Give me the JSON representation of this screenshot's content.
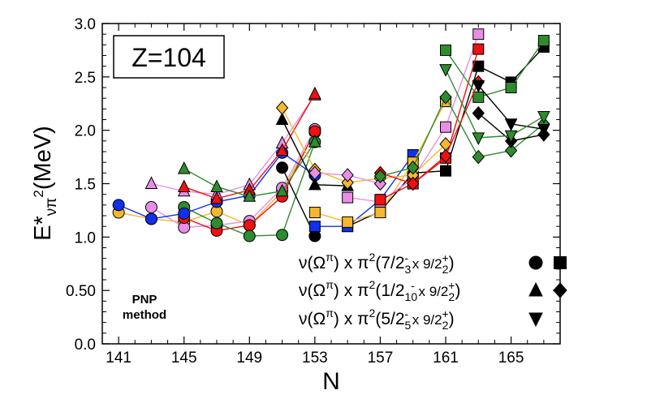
{
  "chart_data": {
    "type": "line",
    "title": "Z=104",
    "xlabel": "N",
    "ylabel": "E*",
    "ylabel_subscript": "νπ",
    "ylabel_superscript": "2",
    "ylabel_unit": "(MeV)",
    "xlim": [
      140,
      168
    ],
    "ylim": [
      0.0,
      3.0
    ],
    "xticks": [
      141,
      145,
      149,
      153,
      157,
      161,
      165
    ],
    "yticks": [
      0.0,
      0.5,
      1.0,
      1.5,
      2.0,
      2.5,
      3.0
    ],
    "ytick_labels": [
      "0.0",
      "0.50",
      "1.0",
      "1.5",
      "2.0",
      "2.5",
      "3.0"
    ],
    "method_label": [
      "PNP",
      "method"
    ],
    "legend": [
      {
        "nu": "ν(Ω",
        "pi_sup": "π",
        "close": ")",
        "x": "x",
        "pi": "π",
        "pi_sq": "2",
        "state": "(7/2",
        "state_sub": "3",
        "state_sup": "-",
        "times": " x 9/2",
        "state2_sub": "2",
        "state2_sup": "+",
        "end": ")",
        "markers": [
          "circle",
          "square"
        ]
      },
      {
        "nu": "ν(Ω",
        "pi_sup": "π",
        "close": ")",
        "x": "x",
        "pi": "π",
        "pi_sq": "2",
        "state": "(1/2",
        "state_sub": "10",
        "state_sup": "-",
        "times": " x 9/2",
        "state2_sub": "2",
        "state2_sup": "+",
        "end": ")",
        "markers": [
          "triangle",
          "diamond"
        ]
      },
      {
        "nu": "ν(Ω",
        "pi_sup": "π",
        "close": ")",
        "x": "x",
        "pi": "π",
        "pi_sq": "2",
        "state": "(5/2",
        "state_sub": "5",
        "state_sup": "-",
        "times": " x 9/2",
        "state2_sub": "2",
        "state2_sup": "+",
        "end": ")",
        "markers": [
          "triangle-down"
        ]
      }
    ],
    "series": [
      {
        "name": "orange circle",
        "color": "#f5b82e",
        "marker": "circle",
        "x": [
          141,
          143,
          145,
          147,
          149,
          151,
          153
        ],
        "y": [
          1.23,
          1.17,
          1.14,
          1.24,
          1.11,
          1.43,
          1.98
        ]
      },
      {
        "name": "pink circle",
        "color": "#e98ee6",
        "marker": "circle",
        "x": [
          143,
          145,
          147,
          149,
          151,
          153
        ],
        "y": [
          1.28,
          1.09,
          1.11,
          1.15,
          1.46,
          2.01
        ]
      },
      {
        "name": "red circle",
        "color": "#ee1111",
        "marker": "circle",
        "x": [
          145,
          147,
          149,
          151,
          153
        ],
        "y": [
          1.18,
          1.06,
          1.11,
          1.38,
          1.99
        ]
      },
      {
        "name": "green circle",
        "color": "#2e8b2e",
        "marker": "circle",
        "x": [
          145,
          147,
          149,
          151,
          153
        ],
        "y": [
          1.28,
          1.13,
          1.01,
          1.02,
          1.89
        ]
      },
      {
        "name": "blue circle",
        "color": "#1030ee",
        "marker": "circle",
        "x": [
          141,
          143,
          145,
          147,
          149,
          151,
          153
        ],
        "y": [
          1.3,
          1.17,
          1.22,
          1.33,
          1.39,
          1.79,
          1.58
        ]
      },
      {
        "name": "black circle",
        "color": "#000000",
        "marker": "circle",
        "x": [
          151,
          153
        ],
        "y": [
          1.65,
          1.01
        ]
      },
      {
        "name": "black square",
        "color": "#000000",
        "marker": "square",
        "x": [
          155,
          157,
          159,
          161,
          163,
          165,
          167
        ],
        "y": [
          1.1,
          1.24,
          1.6,
          1.62,
          2.6,
          2.45,
          2.78
        ]
      },
      {
        "name": "blue square",
        "color": "#1030ee",
        "marker": "square",
        "x": [
          153,
          155,
          157,
          159
        ],
        "y": [
          1.1,
          1.1,
          1.35,
          1.77
        ]
      },
      {
        "name": "orange square",
        "color": "#f5b82e",
        "marker": "square",
        "x": [
          153,
          155,
          157,
          159,
          161
        ],
        "y": [
          1.23,
          1.14,
          1.23,
          1.7,
          2.27
        ]
      },
      {
        "name": "pink square",
        "color": "#e98ee6",
        "marker": "square",
        "x": [
          155,
          157,
          159,
          161,
          163
        ],
        "y": [
          1.37,
          1.33,
          1.55,
          2.03,
          2.9
        ]
      },
      {
        "name": "red square",
        "color": "#ee1111",
        "marker": "square",
        "x": [
          157,
          159,
          161,
          163
        ],
        "y": [
          1.35,
          1.5,
          1.74,
          2.76
        ]
      },
      {
        "name": "green square",
        "color": "#2e8b2e",
        "marker": "square",
        "x": [
          161,
          163,
          165,
          167
        ],
        "y": [
          2.75,
          2.31,
          2.4,
          2.84
        ]
      },
      {
        "name": "pink triangle",
        "color": "#e98ee6",
        "marker": "triangle",
        "x": [
          143,
          145,
          147,
          149,
          151,
          153
        ],
        "y": [
          1.5,
          1.43,
          1.4,
          1.49,
          1.88,
          2.33
        ]
      },
      {
        "name": "red triangle",
        "color": "#ee1111",
        "marker": "triangle",
        "x": [
          145,
          147,
          149,
          151,
          153
        ],
        "y": [
          1.47,
          1.36,
          1.44,
          1.81,
          2.34
        ]
      },
      {
        "name": "green triangle",
        "color": "#2e8b2e",
        "marker": "triangle",
        "x": [
          145,
          147,
          149,
          151,
          153
        ],
        "y": [
          1.64,
          1.47,
          1.38,
          1.43,
          1.89
        ]
      },
      {
        "name": "black triangle",
        "color": "#000000",
        "marker": "triangle",
        "x": [
          151,
          153,
          155
        ],
        "y": [
          2.1,
          1.49,
          1.48
        ]
      },
      {
        "name": "orange diamond",
        "color": "#f5b82e",
        "marker": "diamond",
        "x": [
          151,
          153,
          155,
          157,
          159,
          161
        ],
        "y": [
          2.21,
          1.63,
          1.51,
          1.55,
          1.58,
          1.87
        ]
      },
      {
        "name": "pink diamond",
        "color": "#e98ee6",
        "marker": "diamond",
        "x": [
          153,
          155,
          157
        ],
        "y": [
          1.6,
          1.58,
          1.5
        ]
      },
      {
        "name": "red diamond",
        "color": "#ee1111",
        "marker": "diamond",
        "x": [
          157,
          159,
          161,
          163
        ],
        "y": [
          1.6,
          1.5,
          1.76,
          2.45
        ]
      },
      {
        "name": "green diamond",
        "color": "#2e8b2e",
        "marker": "diamond",
        "x": [
          157,
          159,
          161,
          163,
          165,
          167
        ],
        "y": [
          1.57,
          1.65,
          2.31,
          1.75,
          1.81,
          2.06
        ]
      },
      {
        "name": "black diamond",
        "color": "#000000",
        "marker": "diamond",
        "x": [
          163,
          165,
          167
        ],
        "y": [
          2.16,
          1.9,
          1.96
        ]
      },
      {
        "name": "black triangle-down",
        "color": "#000000",
        "marker": "triangle-down",
        "x": [
          163,
          165,
          167
        ],
        "y": [
          2.42,
          2.06,
          2.01
        ]
      },
      {
        "name": "green triangle-down",
        "color": "#2e8b2e",
        "marker": "triangle-down",
        "x": [
          161,
          163,
          165,
          167
        ],
        "y": [
          2.57,
          1.93,
          1.95,
          2.13
        ]
      }
    ]
  }
}
